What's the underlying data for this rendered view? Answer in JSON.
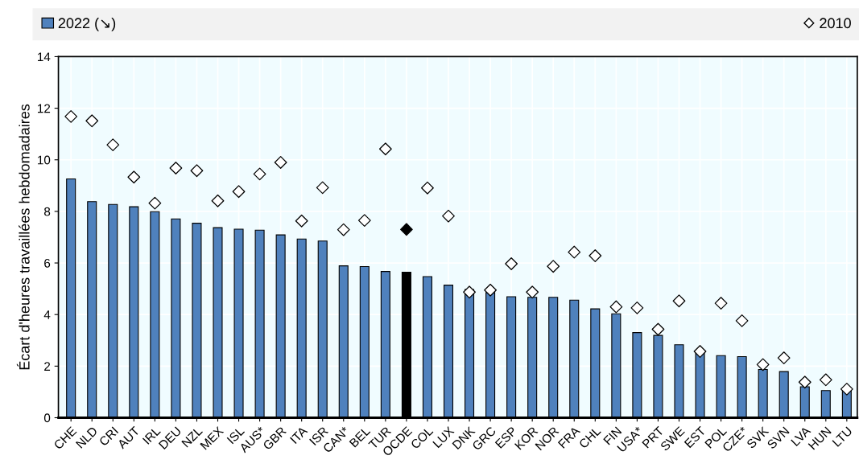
{
  "chart_data": {
    "type": "bar",
    "ylabel": "Écart d'heures travaillées hebdomadaires",
    "categories": [
      "CHE",
      "NLD",
      "CRI",
      "AUT",
      "IRL",
      "DEU",
      "NZL",
      "MEX",
      "ISL",
      "AUS*",
      "GBR",
      "ITA",
      "ISR",
      "CAN*",
      "BEL",
      "TUR",
      "OCDE",
      "COL",
      "LUX",
      "DNK",
      "GRC",
      "ESP",
      "KOR",
      "NOR",
      "FRA",
      "CHL",
      "FIN",
      "USA*",
      "PRT",
      "SWE",
      "EST",
      "POL",
      "CZE*",
      "SVK",
      "SVN",
      "LVA",
      "HUN",
      "LTU"
    ],
    "series": [
      {
        "name": "2022 (↘)",
        "color": "#4f81bd",
        "colors": [
          "#4f81bd",
          "#4f81bd",
          "#4f81bd",
          "#4f81bd",
          "#4f81bd",
          "#4f81bd",
          "#4f81bd",
          "#4f81bd",
          "#4f81bd",
          "#4f81bd",
          "#4f81bd",
          "#4f81bd",
          "#4f81bd",
          "#4f81bd",
          "#4f81bd",
          "#4f81bd",
          "#000000",
          "#4f81bd",
          "#4f81bd",
          "#4f81bd",
          "#4f81bd",
          "#4f81bd",
          "#4f81bd",
          "#4f81bd",
          "#4f81bd",
          "#4f81bd",
          "#4f81bd",
          "#4f81bd",
          "#4f81bd",
          "#4f81bd",
          "#4f81bd",
          "#4f81bd",
          "#4f81bd",
          "#4f81bd",
          "#4f81bd",
          "#4f81bd",
          "#4f81bd",
          "#4f81bd"
        ],
        "values": [
          9.26,
          8.38,
          8.27,
          8.18,
          7.99,
          7.71,
          7.54,
          7.37,
          7.31,
          7.27,
          7.09,
          6.93,
          6.85,
          5.89,
          5.86,
          5.67,
          5.64,
          5.47,
          5.14,
          4.97,
          4.85,
          4.69,
          4.67,
          4.67,
          4.56,
          4.22,
          4.03,
          3.3,
          3.19,
          2.83,
          2.57,
          2.41,
          2.37,
          1.87,
          1.79,
          1.2,
          1.05,
          1.08
        ]
      },
      {
        "name": "2010",
        "type": "scatter",
        "color": "#ffffff",
        "colors": [
          "#ffffff",
          "#ffffff",
          "#ffffff",
          "#ffffff",
          "#ffffff",
          "#ffffff",
          "#ffffff",
          "#ffffff",
          "#ffffff",
          "#ffffff",
          "#ffffff",
          "#ffffff",
          "#ffffff",
          "#ffffff",
          "#ffffff",
          "#ffffff",
          "#000000",
          "#ffffff",
          "#ffffff",
          "#ffffff",
          "#ffffff",
          "#ffffff",
          "#ffffff",
          "#ffffff",
          "#ffffff",
          "#ffffff",
          "#ffffff",
          "#ffffff",
          "#ffffff",
          "#ffffff",
          "#ffffff",
          "#ffffff",
          "#ffffff",
          "#ffffff",
          "#ffffff",
          "#ffffff",
          "#ffffff",
          "#ffffff"
        ],
        "marker": "diamond",
        "values": [
          11.68,
          11.51,
          10.58,
          9.33,
          8.32,
          9.68,
          9.58,
          8.41,
          8.77,
          9.45,
          9.9,
          7.63,
          8.92,
          7.29,
          7.65,
          10.42,
          7.3,
          8.91,
          7.82,
          4.87,
          4.95,
          5.97,
          4.87,
          5.87,
          6.42,
          6.28,
          4.3,
          4.26,
          3.43,
          4.53,
          2.57,
          4.44,
          3.76,
          2.06,
          2.32,
          1.38,
          1.47,
          1.11
        ]
      }
    ],
    "ylim": [
      0,
      14
    ],
    "yticks": [
      0,
      2,
      4,
      6,
      8,
      10,
      12,
      14
    ],
    "grid": true,
    "legend": "top"
  }
}
